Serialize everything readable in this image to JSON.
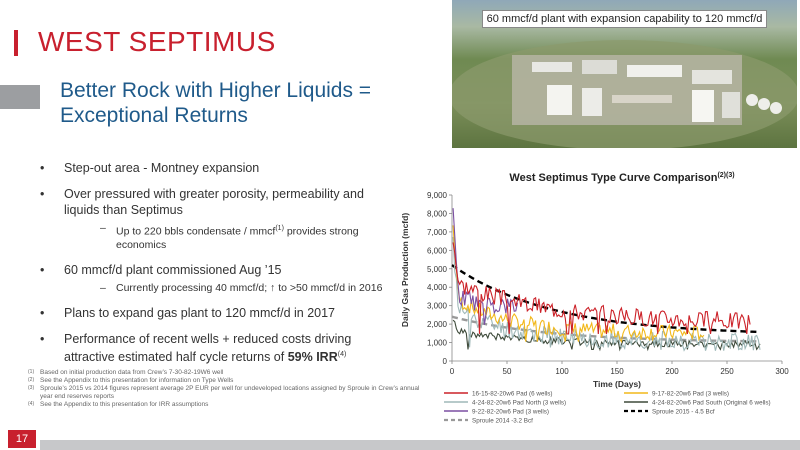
{
  "header": {
    "title": "WEST SEPTIMUS",
    "subtitle_line1": "Better Rock with Higher Liquids =",
    "subtitle_line2": "Exceptional Returns"
  },
  "photo": {
    "caption": "60 mmcf/d plant with expansion capability to 120 mmcf/d"
  },
  "bullets": {
    "b1": "Step-out area - Montney expansion",
    "b2": "Over pressured with greater porosity, permeability and liquids than Septimus",
    "b2_sub_pre": "Up to 220 bbls condensate / mmcf",
    "b2_sub_sup": "(1)",
    "b2_sub_post": " provides strong economics",
    "b3": "60 mmcf/d plant commissioned Aug ’15",
    "b3_sub": "Currently processing 40 mmcf/d; ↑ to >50 mmcf/d in 2016",
    "b4": "Plans to expand gas plant to 120 mmcf/d in 2017",
    "b5_pre": "Performance of recent wells + reduced costs driving attractive estimated half cycle returns of ",
    "b5_bold": "59% IRR",
    "b5_sup": "(4)"
  },
  "footnotes": [
    {
      "num": "(1)",
      "text": "Based on initial production data from Crew’s 7-30-82-19W6 well"
    },
    {
      "num": "(2)",
      "text": "See the Appendix to this presentation for information on Type Wells"
    },
    {
      "num": "(3)",
      "text": "Sproule’s 2015 vs 2014 figures represent average 2P EUR per well  for undeveloped locations assigned by Sproule in Crew’s annual year end reserves reports"
    },
    {
      "num": "(4)",
      "text": "See the Appendix to this presentation for IRR assumptions"
    }
  ],
  "page_number": "17",
  "chart_data": {
    "type": "line",
    "title": "West Septimus Type Curve Comparison",
    "title_sup": "(2)(3)",
    "xlabel": "Time (Days)",
    "ylabel": "Daily Gas Production (mcfd)",
    "xlim": [
      0,
      300
    ],
    "ylim": [
      0,
      9000
    ],
    "x_ticks": [
      "0",
      "50",
      "100",
      "150",
      "200",
      "250",
      "300"
    ],
    "y_ticks": [
      "0",
      "1,000",
      "2,000",
      "3,000",
      "4,000",
      "5,000",
      "6,000",
      "7,000",
      "8,000",
      "9,000"
    ],
    "grid": false,
    "legend_position": "bottom",
    "series": [
      {
        "name": "16-15-82-20w6 Pad (6 wells)",
        "color": "#cc2229",
        "style": "solid",
        "days": 272,
        "qi": 7200,
        "plateau": 4200,
        "ql": 2100,
        "k": 0.012,
        "noise": 480,
        "seed": 3
      },
      {
        "name": "9-17-82-20w6 Pad (3 wells)",
        "color": "#f2b81a",
        "style": "solid",
        "days": 230,
        "qi": 8100,
        "plateau": 3300,
        "ql": 1500,
        "k": 0.02,
        "noise": 420,
        "seed": 7
      },
      {
        "name": "4-24-82-20w6 Pad North (3 wells)",
        "color": "#9fb8b8",
        "style": "solid",
        "days": 280,
        "qi": 7000,
        "plateau": 2800,
        "ql": 1050,
        "k": 0.02,
        "noise": 520,
        "seed": 11
      },
      {
        "name": "4-24-82-20w6 Pad South (Original 6 wells)",
        "color": "#3e4a3a",
        "style": "solid",
        "days": 280,
        "qi": 2300,
        "plateau": 1600,
        "ql": 900,
        "k": 0.015,
        "noise": 180,
        "seed": 19
      },
      {
        "name": "9-22-82-20w6 Pad (3 wells)",
        "color": "#7b4fa2",
        "style": "solid",
        "days": 60,
        "qi": 8700,
        "plateau": 3600,
        "ql": 2800,
        "k": 0.05,
        "noise": 500,
        "seed": 23
      },
      {
        "name": "Sproule 2015 - 4.5 Bcf",
        "color": "#000000",
        "style": "dashed",
        "days": 280,
        "qi": 5200,
        "ql": 1400,
        "k": 0.011
      },
      {
        "name": "Sproule 2014 -3.2 Bcf",
        "color": "#999999",
        "style": "dashed",
        "days": 280,
        "qi": 2400,
        "ql": 1000,
        "k": 0.011
      }
    ]
  }
}
